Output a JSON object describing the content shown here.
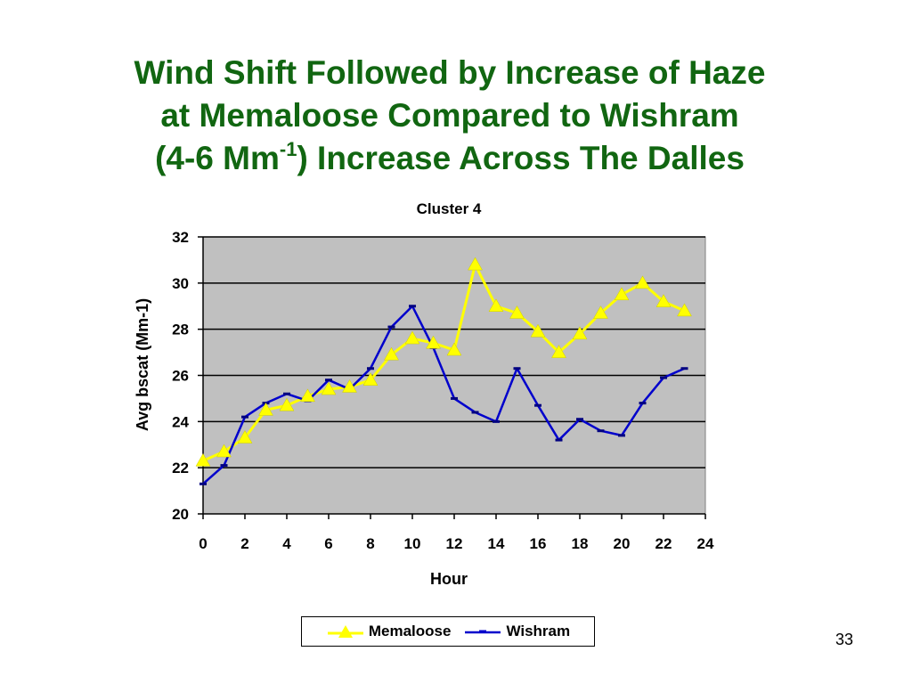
{
  "slide": {
    "title_line1": "Wind Shift Followed by Increase of Haze",
    "title_line2": "at Memaloose Compared to Wishram",
    "title_line3_pre": "(4-6 Mm",
    "title_line3_sup": "-1",
    "title_line3_post": ") Increase Across The Dalles",
    "page_number": "33"
  },
  "colors": {
    "title": "#116611",
    "memaloose": "#ffff00",
    "wishram": "#0000cc",
    "plot_bg": "#c0c0c0"
  },
  "chart_data": {
    "type": "line",
    "title": "Cluster 4",
    "xlabel": "Hour",
    "ylabel": "Avg bscat (Mm-1)",
    "xlim": [
      0,
      24
    ],
    "ylim": [
      20,
      32
    ],
    "xticks": [
      0,
      2,
      4,
      6,
      8,
      10,
      12,
      14,
      16,
      18,
      20,
      22,
      24
    ],
    "yticks": [
      20,
      22,
      24,
      26,
      28,
      30,
      32
    ],
    "grid": "horizontal",
    "legend_position": "bottom",
    "x": [
      0,
      1,
      2,
      3,
      4,
      5,
      6,
      7,
      8,
      9,
      10,
      11,
      12,
      13,
      14,
      15,
      16,
      17,
      18,
      19,
      20,
      21,
      22,
      23
    ],
    "series": [
      {
        "name": "Memaloose",
        "marker": "triangle",
        "values": [
          22.3,
          22.7,
          23.3,
          24.5,
          24.7,
          25.1,
          25.4,
          25.5,
          25.8,
          26.9,
          27.6,
          27.4,
          27.1,
          30.8,
          29.0,
          28.7,
          27.9,
          27.0,
          27.8,
          28.7,
          29.5,
          30.0,
          29.2,
          28.8
        ]
      },
      {
        "name": "Wishram",
        "marker": "dash",
        "values": [
          21.3,
          22.1,
          24.2,
          24.8,
          25.2,
          24.9,
          25.8,
          25.4,
          26.3,
          28.1,
          29.0,
          27.2,
          25.0,
          24.4,
          24.0,
          26.3,
          24.7,
          23.2,
          24.1,
          23.6,
          23.4,
          24.8,
          25.9,
          26.3
        ]
      }
    ]
  }
}
